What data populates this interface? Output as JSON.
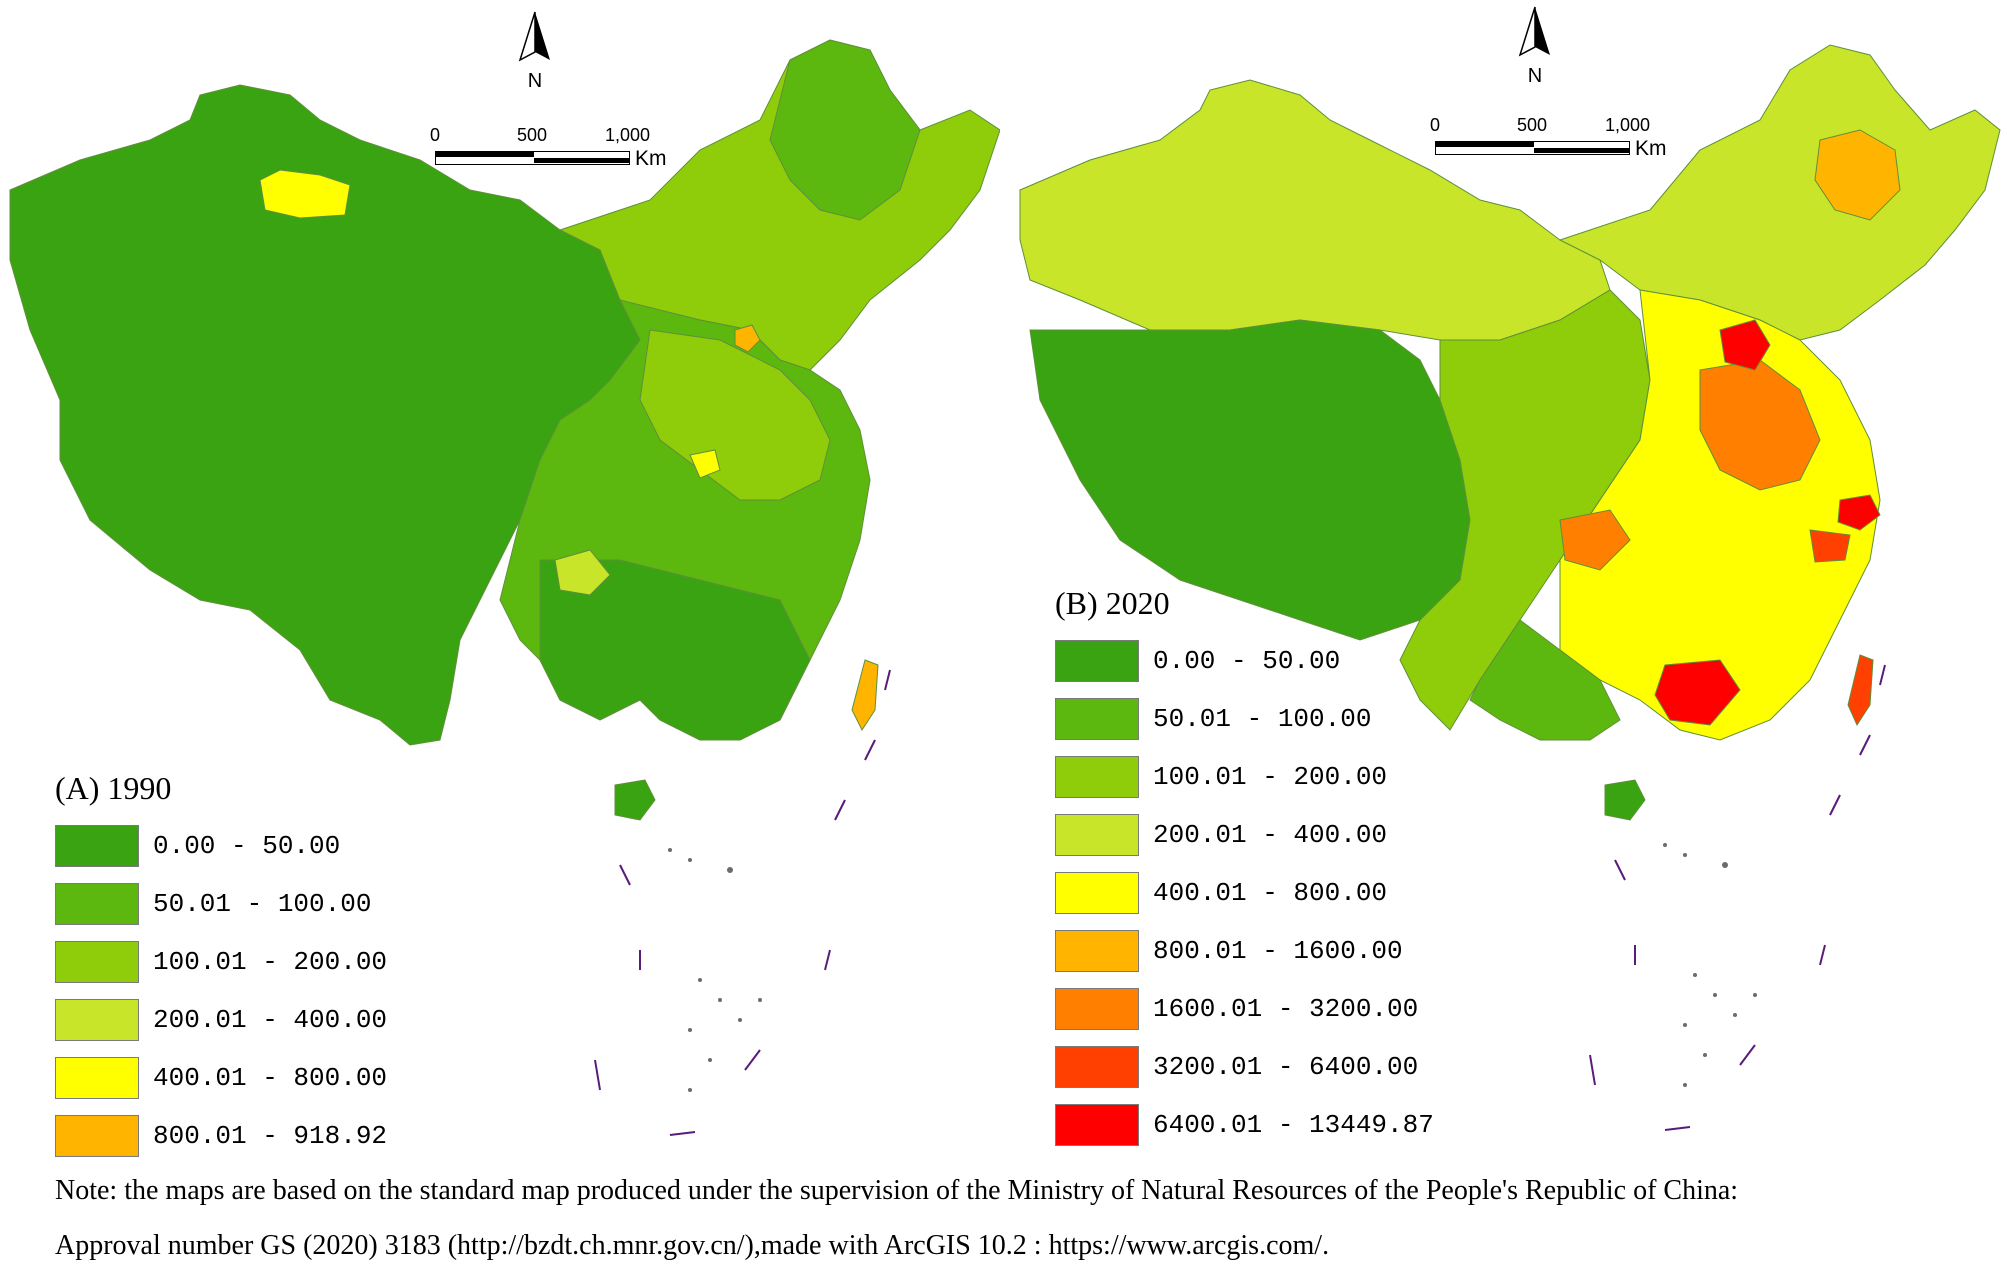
{
  "panels": [
    {
      "title": "(A) 1990",
      "north_label": "N",
      "scale": {
        "ticks": [
          "0",
          "500",
          "1,000"
        ],
        "unit": "Km"
      },
      "legend": [
        {
          "label": "0.00 - 50.00",
          "color": "#3aa312"
        },
        {
          "label": "50.01 - 100.00",
          "color": "#5cb80f"
        },
        {
          "label": "100.01 - 200.00",
          "color": "#8fcc0a"
        },
        {
          "label": "200.01 - 400.00",
          "color": "#c8e52a"
        },
        {
          "label": "400.01 - 800.00",
          "color": "#ffff00"
        },
        {
          "label": "800.01 - 918.92",
          "color": "#ffb400"
        }
      ]
    },
    {
      "title": "(B) 2020",
      "north_label": "N",
      "scale": {
        "ticks": [
          "0",
          "500",
          "1,000"
        ],
        "unit": "Km"
      },
      "legend": [
        {
          "label": "0.00 - 50.00",
          "color": "#3aa312"
        },
        {
          "label": "50.01 - 100.00",
          "color": "#5cb80f"
        },
        {
          "label": "100.01 - 200.00",
          "color": "#8fcc0a"
        },
        {
          "label": "200.01 - 400.00",
          "color": "#c8e52a"
        },
        {
          "label": "400.01 - 800.00",
          "color": "#ffff00"
        },
        {
          "label": "800.01 - 1600.00",
          "color": "#ffb400"
        },
        {
          "label": "1600.01 - 3200.00",
          "color": "#ff8000"
        },
        {
          "label": "3200.01 - 6400.00",
          "color": "#ff4000"
        },
        {
          "label": "6400.01 - 13449.87",
          "color": "#ff0000"
        }
      ]
    }
  ],
  "note": {
    "line1": "Note: the maps are based on the standard map produced under the supervision of the Ministry of Natural Resources of the People's Republic of China:",
    "line2": "Approval number GS (2020) 3183 (http://bzdt.ch.mnr.gov.cn/),made with ArcGIS 10.2 : https://www.arcgis.com/."
  },
  "colors": {
    "boundary": "#6b6b6b",
    "island_line": "#5a1c7a"
  }
}
